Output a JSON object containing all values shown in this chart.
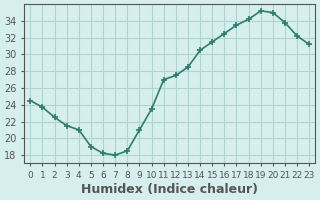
{
  "x": [
    0,
    1,
    2,
    3,
    4,
    5,
    6,
    7,
    8,
    9,
    10,
    11,
    12,
    13,
    14,
    15,
    16,
    17,
    18,
    19,
    20,
    21,
    22,
    23
  ],
  "y": [
    24.5,
    23.7,
    22.5,
    21.5,
    21.0,
    19.0,
    18.2,
    18.0,
    18.5,
    21.0,
    23.5,
    27.0,
    27.5,
    28.5,
    30.5,
    31.5,
    32.5,
    33.5,
    34.2,
    35.2,
    35.0,
    33.8,
    32.2,
    31.2
  ],
  "line_color": "#2e7d6e",
  "marker": "+",
  "marker_size": 5,
  "bg_color": "#d6eeee",
  "grid_color": "#b0d4d4",
  "axis_color": "#555555",
  "xlim": [
    -0.5,
    23.5
  ],
  "ylim": [
    17,
    36
  ],
  "yticks": [
    18,
    20,
    22,
    24,
    26,
    28,
    30,
    32,
    34
  ],
  "xtick_labels": [
    "0",
    "1",
    "2",
    "3",
    "4",
    "5",
    "6",
    "7",
    "8",
    "9",
    "10",
    "11",
    "12",
    "13",
    "14",
    "15",
    "16",
    "17",
    "18",
    "19",
    "20",
    "21",
    "22",
    "23"
  ],
  "xlabel": "Humidex (Indice chaleur)",
  "xlabel_fontsize": 9,
  "tick_fontsize": 7,
  "line_width": 1.2
}
